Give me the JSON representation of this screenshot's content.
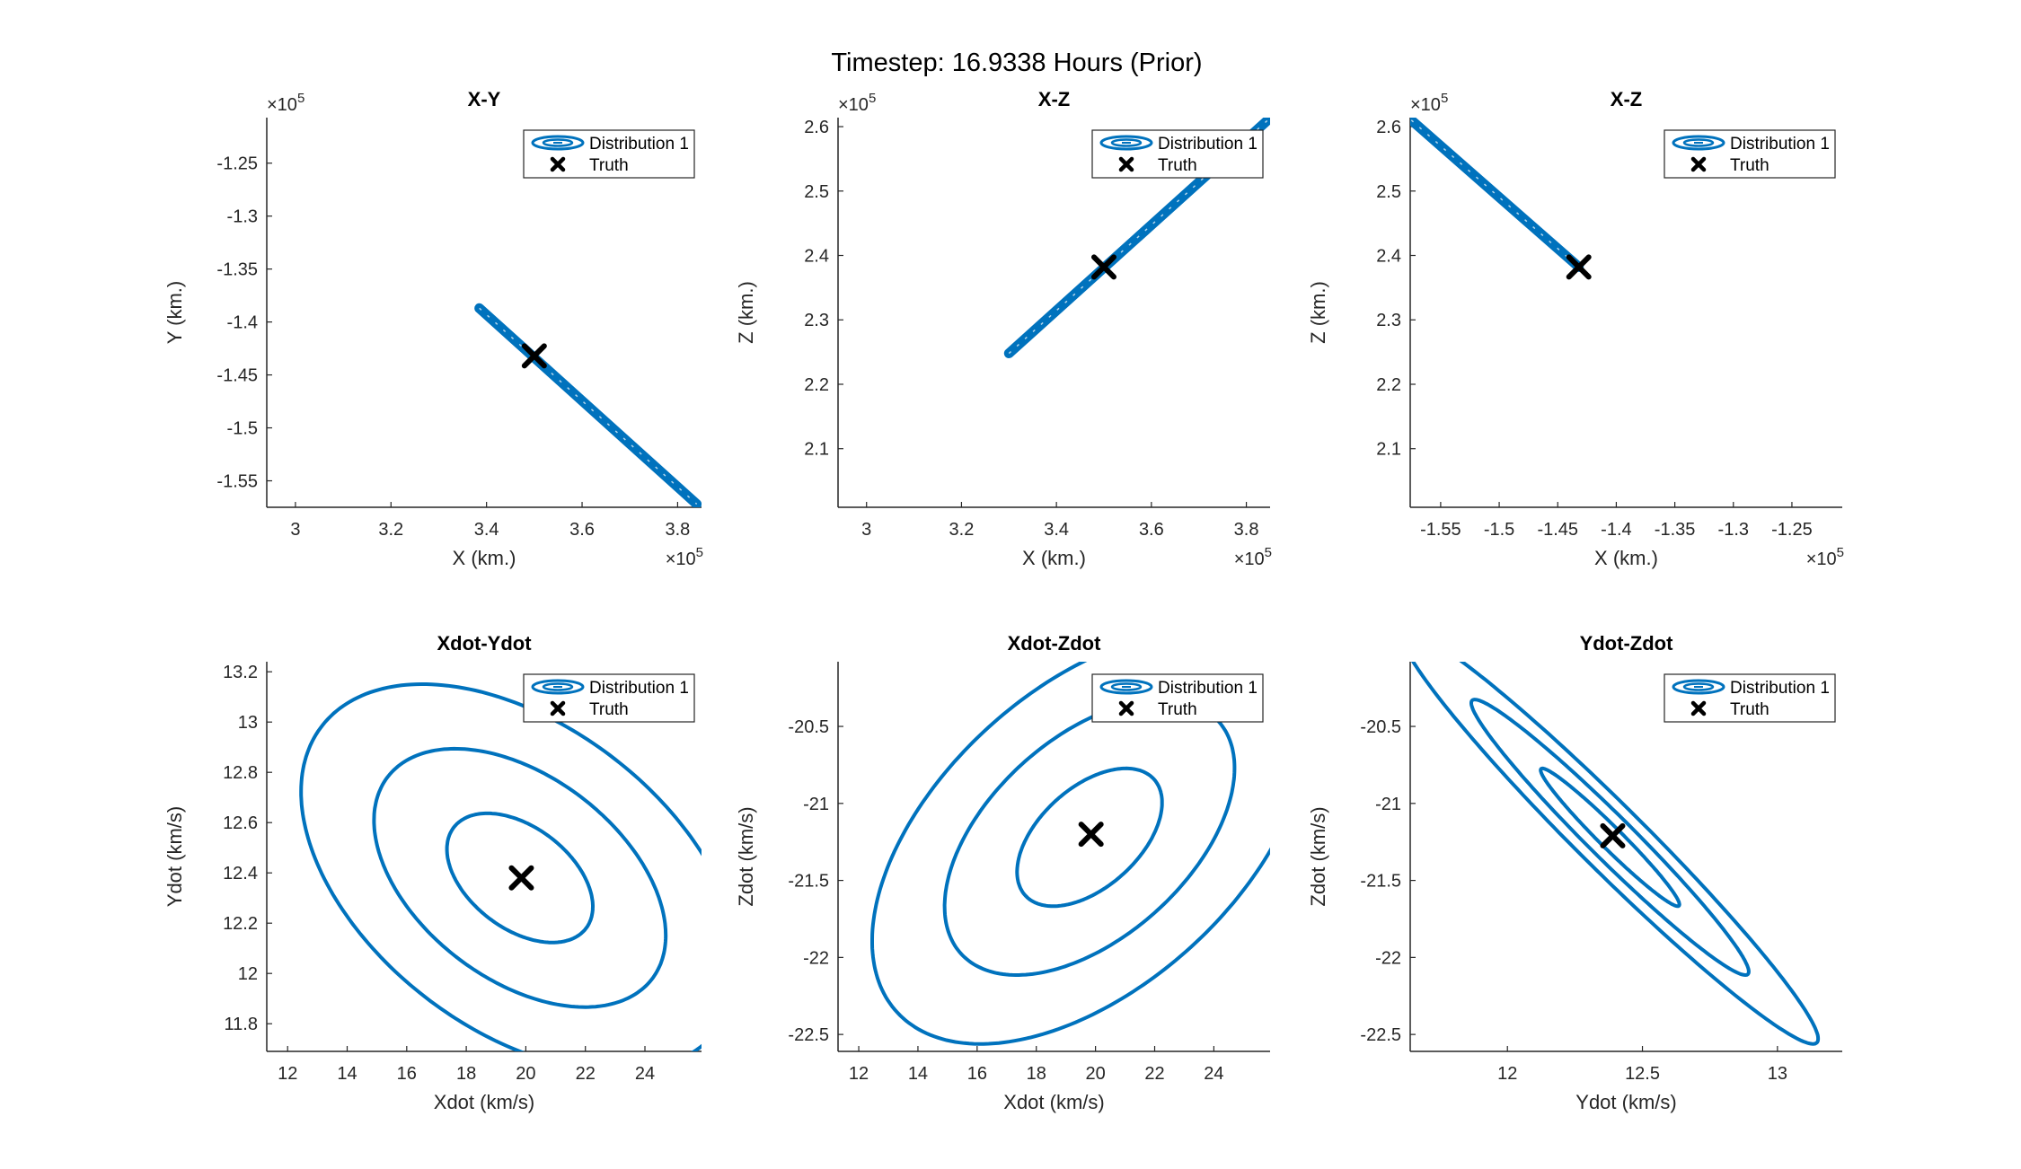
{
  "figure_title": "Timestep: 16.9338 Hours (Prior)",
  "legend": {
    "entries": [
      "Distribution 1",
      "Truth"
    ]
  },
  "colors": {
    "distribution": "#0072BD",
    "truth": "#000000",
    "axis": "#262626"
  },
  "chart_data": [
    {
      "id": "xy",
      "type": "line",
      "title": "X-Y",
      "xlabel": "X (km.)",
      "ylabel": "Y (km.)",
      "xlim": [
        2.94,
        3.85
      ],
      "ylim": [
        -1.575,
        -1.207
      ],
      "xticks": [
        3,
        3.2,
        3.4,
        3.6,
        3.8
      ],
      "xticklabels": [
        "3",
        "3.2",
        "3.4",
        "3.6",
        "3.8"
      ],
      "yticks": [
        -1.25,
        -1.3,
        -1.35,
        -1.4,
        -1.45,
        -1.5,
        -1.55
      ],
      "yticklabels": [
        "-1.25",
        "-1.3",
        "-1.35",
        "-1.4",
        "-1.45",
        "-1.5",
        "-1.55"
      ],
      "x_multiplier": "×10^5",
      "y_multiplier": "×10^5",
      "series": [
        {
          "name": "Distribution 1",
          "kind": "band",
          "points": [
            [
              3.385,
              -1.387
            ],
            [
              3.84,
              -1.572
            ]
          ]
        },
        {
          "name": "Truth",
          "kind": "marker",
          "points": [
            [
              3.5,
              -1.432
            ]
          ]
        }
      ]
    },
    {
      "id": "xz",
      "type": "line",
      "title": "X-Z",
      "xlabel": "X (km.)",
      "ylabel": "Z (km.)",
      "xlim": [
        2.94,
        3.85
      ],
      "ylim": [
        2.009,
        2.614
      ],
      "xticks": [
        3,
        3.2,
        3.4,
        3.6,
        3.8
      ],
      "xticklabels": [
        "3",
        "3.2",
        "3.4",
        "3.6",
        "3.8"
      ],
      "yticks": [
        2.1,
        2.2,
        2.3,
        2.4,
        2.5,
        2.6
      ],
      "yticklabels": [
        "2.1",
        "2.2",
        "2.3",
        "2.4",
        "2.5",
        "2.6"
      ],
      "x_multiplier": "×10^5",
      "y_multiplier": "×10^5",
      "series": [
        {
          "name": "Distribution 1",
          "kind": "band",
          "points": [
            [
              3.3,
              2.248
            ],
            [
              3.845,
              2.61
            ]
          ]
        },
        {
          "name": "Truth",
          "kind": "marker",
          "points": [
            [
              3.5,
              2.382
            ]
          ]
        }
      ]
    },
    {
      "id": "yz",
      "type": "line",
      "title": "X-Z",
      "xlabel": "X (km.)",
      "ylabel": "Z (km.)",
      "xlim": [
        -1.576,
        -1.207
      ],
      "ylim": [
        2.009,
        2.614
      ],
      "xticks": [
        -1.55,
        -1.5,
        -1.45,
        -1.4,
        -1.35,
        -1.3,
        -1.25
      ],
      "xticklabels": [
        "-1.55",
        "-1.5",
        "-1.45",
        "-1.4",
        "-1.35",
        "-1.3",
        "-1.25"
      ],
      "yticks": [
        2.1,
        2.2,
        2.3,
        2.4,
        2.5,
        2.6
      ],
      "yticklabels": [
        "2.1",
        "2.2",
        "2.3",
        "2.4",
        "2.5",
        "2.6"
      ],
      "x_multiplier": "×10^5",
      "y_multiplier": "×10^5",
      "series": [
        {
          "name": "Distribution 1",
          "kind": "band",
          "points": [
            [
              -1.575,
              2.61
            ],
            [
              -1.432,
              2.382
            ]
          ]
        },
        {
          "name": "Truth",
          "kind": "marker",
          "points": [
            [
              -1.432,
              2.382
            ]
          ]
        }
      ]
    },
    {
      "id": "vxvy",
      "type": "line",
      "title": "Xdot-Ydot",
      "xlabel": "Xdot (km/s)",
      "ylabel": "Ydot (km/s)",
      "xlim": [
        11.3,
        25.9
      ],
      "ylim": [
        11.69,
        13.24
      ],
      "xticks": [
        12,
        14,
        16,
        18,
        20,
        22,
        24
      ],
      "xticklabels": [
        "12",
        "14",
        "16",
        "18",
        "20",
        "22",
        "24"
      ],
      "yticks": [
        11.8,
        12,
        12.2,
        12.4,
        12.6,
        12.8,
        13,
        13.2
      ],
      "yticklabels": [
        "11.8",
        "12",
        "12.2",
        "12.4",
        "12.6",
        "12.8",
        "13",
        "13.2"
      ],
      "series": [
        {
          "name": "Distribution 1",
          "kind": "ellipses",
          "center": [
            19.8,
            12.38
          ],
          "cov": [
            [
              6.0,
              -0.28
            ],
            [
              -0.28,
              0.066
            ]
          ],
          "levels": [
            1,
            2,
            3
          ]
        },
        {
          "name": "Truth",
          "kind": "marker",
          "points": [
            [
              19.85,
              12.38
            ]
          ]
        }
      ]
    },
    {
      "id": "vxvz",
      "type": "line",
      "title": "Xdot-Zdot",
      "xlabel": "Xdot (km/s)",
      "ylabel": "Zdot (km/s)",
      "xlim": [
        11.3,
        25.9
      ],
      "ylim": [
        -22.61,
        -20.08
      ],
      "xticks": [
        12,
        14,
        16,
        18,
        20,
        22,
        24
      ],
      "xticklabels": [
        "12",
        "14",
        "16",
        "18",
        "20",
        "22",
        "24"
      ],
      "yticks": [
        -20.5,
        -21,
        -21.5,
        -22,
        -22.5
      ],
      "yticklabels": [
        "-20.5",
        "-21",
        "-21.5",
        "-22",
        "-22.5"
      ],
      "series": [
        {
          "name": "Distribution 1",
          "kind": "ellipses",
          "center": [
            19.8,
            -21.22
          ],
          "cov": [
            [
              6.0,
              0.55
            ],
            [
              0.55,
              0.2
            ]
          ],
          "levels": [
            1,
            2,
            3
          ]
        },
        {
          "name": "Truth",
          "kind": "marker",
          "points": [
            [
              19.85,
              -21.2
            ]
          ]
        }
      ]
    },
    {
      "id": "vyvz",
      "type": "line",
      "title": "Ydot-Zdot",
      "xlabel": "Ydot (km/s)",
      "ylabel": "Zdot (km/s)",
      "xlim": [
        11.64,
        13.24
      ],
      "ylim": [
        -22.61,
        -20.08
      ],
      "xticks": [
        12,
        12.5,
        13
      ],
      "xticklabels": [
        "12",
        "12.5",
        "13"
      ],
      "yticks": [
        -20.5,
        -21,
        -21.5,
        -22,
        -22.5
      ],
      "yticklabels": [
        "-20.5",
        "-21",
        "-21.5",
        "-22",
        "-22.5"
      ],
      "series": [
        {
          "name": "Distribution 1",
          "kind": "ellipses",
          "center": [
            12.38,
            -21.22
          ],
          "cov": [
            [
              0.066,
              -0.112
            ],
            [
              -0.112,
              0.2
            ]
          ],
          "levels": [
            1,
            2,
            3
          ]
        },
        {
          "name": "Truth",
          "kind": "marker",
          "points": [
            [
              12.39,
              -21.21
            ]
          ]
        }
      ]
    }
  ]
}
